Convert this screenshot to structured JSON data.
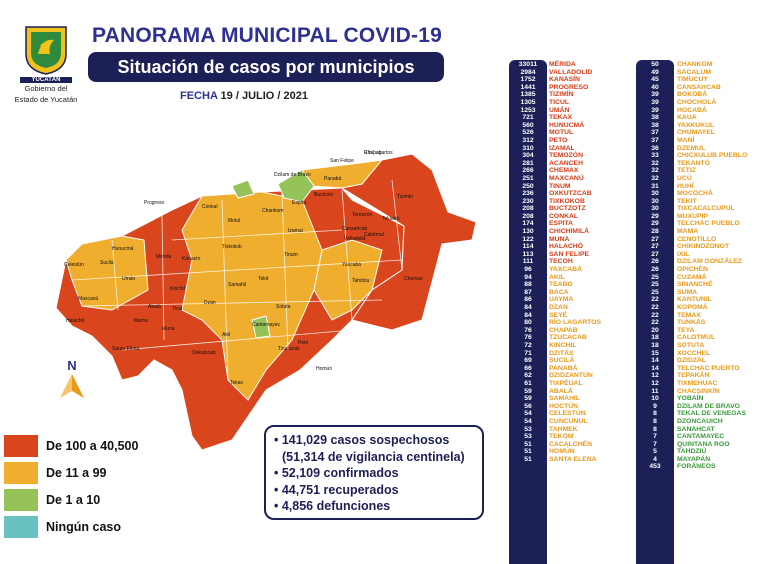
{
  "header": {
    "title": "PANORAMA MUNICIPAL COVID-19",
    "subtitle": "Situación de casos por municipios",
    "date_label": "FECHA",
    "date_value": "19 / JULIO / 2021"
  },
  "logo": {
    "emblem_text": "YUCATÁN",
    "line1": "Gobierno del",
    "line2": "Estado de Yucatán"
  },
  "north_label": "N",
  "colors": {
    "red": "#d9451c",
    "orange": "#efae2e",
    "green": "#96c25a",
    "teal": "#6ac2c0",
    "navy": "#1c2056"
  },
  "legend": [
    {
      "label": "De 100 a 40,500",
      "color": "#d9451c"
    },
    {
      "label": "De 11 a 99",
      "color": "#efae2e"
    },
    {
      "label": "De 1 a 10",
      "color": "#96c25a"
    },
    {
      "label": "Ningún caso",
      "color": "#6ac2c0"
    }
  ],
  "stats": [
    "• 141,029 casos sospechosos",
    "(51,314 de vigilancia centinela)",
    "• 52,109 confirmados",
    "• 44,751 recuperados",
    "• 4,856 defunciones"
  ],
  "map_labels": [
    "Río Lagartos",
    "Dzilam de Bravo",
    "San Felipe",
    "Tizimín",
    "Progreso",
    "Mérida",
    "Kanasín",
    "Motul",
    "Izamal",
    "Espita",
    "Valladolid",
    "Celestún",
    "Tekax",
    "Peto",
    "Oxkutzcab",
    "Tzucacab",
    "Ticul",
    "Chemax",
    "Calotmul",
    "Buctzotz",
    "Umán",
    "Hunucmá",
    "Maxcanú",
    "Halachó",
    "Tinum",
    "Panabá",
    "Conkal",
    "Abalá",
    "Tixkokob",
    "Sotuta",
    "Cantamayec",
    "Santa Elena",
    "Muna",
    "Akil",
    "Tekit",
    "Homún",
    "Tahdziu",
    "Yaxcabá",
    "Chankom",
    "Temozón",
    "Cansahcab",
    "Tekantó",
    "Sucilá",
    "Kinchil",
    "Samahil",
    "Mama",
    "Dzán",
    "Chapab"
  ],
  "municipalities_left": [
    {
      "count": "33011",
      "name": "MÉRIDA",
      "c": "red"
    },
    {
      "count": "2984",
      "name": "VALLADOLID",
      "c": "red"
    },
    {
      "count": "1752",
      "name": "KANASÍN",
      "c": "red"
    },
    {
      "count": "1441",
      "name": "PROGRESO",
      "c": "red"
    },
    {
      "count": "1385",
      "name": "TIZIMÍN",
      "c": "red"
    },
    {
      "count": "1305",
      "name": "TICUL",
      "c": "red"
    },
    {
      "count": "1253",
      "name": "UMÁN",
      "c": "red"
    },
    {
      "count": "721",
      "name": "TEKAX",
      "c": "red"
    },
    {
      "count": "560",
      "name": "HUNUCMÁ",
      "c": "red"
    },
    {
      "count": "526",
      "name": "MOTUL",
      "c": "red"
    },
    {
      "count": "312",
      "name": "PETO",
      "c": "red"
    },
    {
      "count": "310",
      "name": "IZAMAL",
      "c": "red"
    },
    {
      "count": "304",
      "name": "TEMOZÓN",
      "c": "red"
    },
    {
      "count": "281",
      "name": "ACANCEH",
      "c": "red"
    },
    {
      "count": "266",
      "name": "CHEMAX",
      "c": "red"
    },
    {
      "count": "251",
      "name": "MAXCANÚ",
      "c": "red"
    },
    {
      "count": "250",
      "name": "TINUM",
      "c": "red"
    },
    {
      "count": "236",
      "name": "OXKUTZCAB",
      "c": "red"
    },
    {
      "count": "230",
      "name": "TIXKOKOB",
      "c": "red"
    },
    {
      "count": "208",
      "name": "BUCTZOTZ",
      "c": "red"
    },
    {
      "count": "208",
      "name": "CONKAL",
      "c": "red"
    },
    {
      "count": "174",
      "name": "ESPITA",
      "c": "red"
    },
    {
      "count": "130",
      "name": "CHICHIMILÁ",
      "c": "red"
    },
    {
      "count": "122",
      "name": "MUNA",
      "c": "red"
    },
    {
      "count": "114",
      "name": "HALACHÓ",
      "c": "red"
    },
    {
      "count": "113",
      "name": "SAN FELIPE",
      "c": "red"
    },
    {
      "count": "111",
      "name": "TECOH",
      "c": "red"
    },
    {
      "count": "96",
      "name": "YAXCABÁ",
      "c": "orange"
    },
    {
      "count": "94",
      "name": "AKIL",
      "c": "orange"
    },
    {
      "count": "88",
      "name": "TEABO",
      "c": "orange"
    },
    {
      "count": "87",
      "name": "BACA",
      "c": "orange"
    },
    {
      "count": "86",
      "name": "UAYMA",
      "c": "orange"
    },
    {
      "count": "84",
      "name": "DZAN",
      "c": "orange"
    },
    {
      "count": "84",
      "name": "SEYÉ",
      "c": "orange"
    },
    {
      "count": "80",
      "name": "RÍO LAGARTOS",
      "c": "orange"
    },
    {
      "count": "76",
      "name": "CHAPAB",
      "c": "orange"
    },
    {
      "count": "76",
      "name": "TZUCACAB",
      "c": "orange"
    },
    {
      "count": "72",
      "name": "KINCHIL",
      "c": "orange"
    },
    {
      "count": "71",
      "name": "DZITÁS",
      "c": "orange"
    },
    {
      "count": "69",
      "name": "SUCILÁ",
      "c": "orange"
    },
    {
      "count": "66",
      "name": "PANABÁ",
      "c": "orange"
    },
    {
      "count": "62",
      "name": "DZIDZANTÚN",
      "c": "orange"
    },
    {
      "count": "61",
      "name": "TIXPÉUAL",
      "c": "orange"
    },
    {
      "count": "59",
      "name": "ABALÁ",
      "c": "orange"
    },
    {
      "count": "59",
      "name": "SAMAHIL",
      "c": "orange"
    },
    {
      "count": "56",
      "name": "HOCTÚN",
      "c": "orange"
    },
    {
      "count": "54",
      "name": "CELESTÚN",
      "c": "orange"
    },
    {
      "count": "54",
      "name": "CUNCUNUL",
      "c": "orange"
    },
    {
      "count": "53",
      "name": "TAHMEK",
      "c": "orange"
    },
    {
      "count": "53",
      "name": "TEKOM",
      "c": "orange"
    },
    {
      "count": "51",
      "name": "CACALCHÉN",
      "c": "orange"
    },
    {
      "count": "51",
      "name": "HOMÚN",
      "c": "orange"
    },
    {
      "count": "51",
      "name": "SANTA ELENA",
      "c": "orange"
    }
  ],
  "municipalities_right": [
    {
      "count": "50",
      "name": "CHANKOM",
      "c": "orange"
    },
    {
      "count": "49",
      "name": "SACALUM",
      "c": "orange"
    },
    {
      "count": "45",
      "name": "TIMUCUY",
      "c": "orange"
    },
    {
      "count": "40",
      "name": "CANSAHCAB",
      "c": "orange"
    },
    {
      "count": "39",
      "name": "BOKOBÁ",
      "c": "orange"
    },
    {
      "count": "39",
      "name": "CHOCHOLÁ",
      "c": "orange"
    },
    {
      "count": "39",
      "name": "HOCABÁ",
      "c": "orange"
    },
    {
      "count": "38",
      "name": "KAUA",
      "c": "orange"
    },
    {
      "count": "38",
      "name": "YAXKUKUL",
      "c": "orange"
    },
    {
      "count": "37",
      "name": "CHUMAYEL",
      "c": "orange"
    },
    {
      "count": "37",
      "name": "MANÍ",
      "c": "orange"
    },
    {
      "count": "36",
      "name": "DZEMUL",
      "c": "orange"
    },
    {
      "count": "33",
      "name": "CHICXULUB PUEBLO",
      "c": "orange"
    },
    {
      "count": "32",
      "name": "TEKANTÓ",
      "c": "orange"
    },
    {
      "count": "32",
      "name": "TETIZ",
      "c": "orange"
    },
    {
      "count": "32",
      "name": "UCÚ",
      "c": "orange"
    },
    {
      "count": "31",
      "name": "HUHÍ",
      "c": "orange"
    },
    {
      "count": "30",
      "name": "MOCOCHÁ",
      "c": "orange"
    },
    {
      "count": "30",
      "name": "TEKIT",
      "c": "orange"
    },
    {
      "count": "30",
      "name": "TIXCACALCUPUL",
      "c": "orange"
    },
    {
      "count": "29",
      "name": "MUXUPIP",
      "c": "orange"
    },
    {
      "count": "29",
      "name": "TELCHAC PUEBLO",
      "c": "orange"
    },
    {
      "count": "28",
      "name": "MAMA",
      "c": "orange"
    },
    {
      "count": "27",
      "name": "CENOTILLO",
      "c": "orange"
    },
    {
      "count": "27",
      "name": "CHIKINDZONOT",
      "c": "orange"
    },
    {
      "count": "27",
      "name": "IXIL",
      "c": "orange"
    },
    {
      "count": "26",
      "name": "DZILAM GONZÁLEZ",
      "c": "orange"
    },
    {
      "count": "26",
      "name": "OPICHÉN",
      "c": "orange"
    },
    {
      "count": "25",
      "name": "CUZAMÁ",
      "c": "orange"
    },
    {
      "count": "25",
      "name": "SINANCHÉ",
      "c": "orange"
    },
    {
      "count": "25",
      "name": "SUMA",
      "c": "orange"
    },
    {
      "count": "22",
      "name": "KANTUNIL",
      "c": "orange"
    },
    {
      "count": "22",
      "name": "KOPOMÁ",
      "c": "orange"
    },
    {
      "count": "22",
      "name": "TEMAX",
      "c": "orange"
    },
    {
      "count": "22",
      "name": "TUNKÁS",
      "c": "orange"
    },
    {
      "count": "20",
      "name": "TEYA",
      "c": "orange"
    },
    {
      "count": "18",
      "name": "CALOTMUL",
      "c": "orange"
    },
    {
      "count": "18",
      "name": "SOTUTA",
      "c": "orange"
    },
    {
      "count": "15",
      "name": "XOCCHEL",
      "c": "orange"
    },
    {
      "count": "14",
      "name": "DZIDZAL",
      "c": "orange"
    },
    {
      "count": "14",
      "name": "TELCHAC PUERTO",
      "c": "orange"
    },
    {
      "count": "12",
      "name": "TEPAKÁN",
      "c": "orange"
    },
    {
      "count": "12",
      "name": "TIXMEHUAC",
      "c": "orange"
    },
    {
      "count": "11",
      "name": "CHACSINKÍN",
      "c": "orange"
    },
    {
      "count": "10",
      "name": "YOBAÍN",
      "c": "green"
    },
    {
      "count": "9",
      "name": "DZILAM DE BRAVO",
      "c": "green"
    },
    {
      "count": "8",
      "name": "TEKAL DE VENEGAS",
      "c": "green"
    },
    {
      "count": "8",
      "name": "DZONCAUICH",
      "c": "green"
    },
    {
      "count": "8",
      "name": "SANAHCAT",
      "c": "green"
    },
    {
      "count": "7",
      "name": "CANTAMAYEC",
      "c": "green"
    },
    {
      "count": "7",
      "name": "QUINTANA ROO",
      "c": "green"
    },
    {
      "count": "5",
      "name": "TAHDZIÚ",
      "c": "green"
    },
    {
      "count": "4",
      "name": "MAYAPÁN",
      "c": "green"
    },
    {
      "count": "453",
      "name": "FORÁNEOS",
      "c": "green"
    }
  ]
}
